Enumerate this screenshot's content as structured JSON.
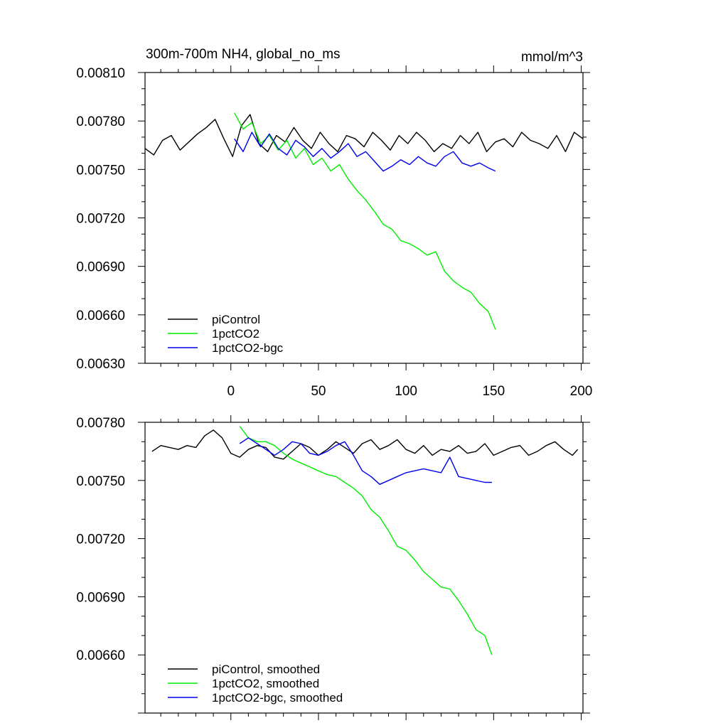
{
  "figure": {
    "title": "300m-700m NH4, global_no_ms",
    "units": "mmol/m^3"
  },
  "chart_data": [
    {
      "type": "line",
      "title": "300m-700m NH4, global_no_ms",
      "units": "mmol/m^3",
      "xlabel": "",
      "ylabel": "",
      "xlim": [
        -49,
        201
      ],
      "ylim": [
        0.0063,
        0.0081
      ],
      "xticks": [
        0,
        50,
        100,
        150,
        200
      ],
      "xtick_labels": [
        "0",
        "50",
        "100",
        "150",
        "200"
      ],
      "yticks": [
        0.0063,
        0.0066,
        0.0069,
        0.0072,
        0.0075,
        0.0078,
        0.0081
      ],
      "ytick_labels": [
        "0.00630",
        "0.00660",
        "0.00690",
        "0.00720",
        "0.00750",
        "0.00780",
        "0.00810"
      ],
      "legend_position": "bottom-left",
      "series": [
        {
          "name": "piControl",
          "color": "#000000",
          "x": [
            -49,
            -44,
            -39,
            -34,
            -29,
            -24,
            -19,
            -14,
            -9,
            -4,
            1,
            6,
            11,
            16,
            21,
            26,
            31,
            36,
            41,
            46,
            51,
            56,
            61,
            66,
            71,
            76,
            81,
            86,
            91,
            96,
            101,
            106,
            111,
            116,
            121,
            126,
            131,
            136,
            141,
            146,
            151,
            156,
            161,
            166,
            171,
            176,
            181,
            186,
            191,
            196,
            201
          ],
          "y": [
            0.00763,
            0.00759,
            0.00768,
            0.00771,
            0.00762,
            0.00767,
            0.00772,
            0.00776,
            0.00781,
            0.00769,
            0.00758,
            0.00777,
            0.00784,
            0.00766,
            0.00761,
            0.00771,
            0.00767,
            0.00776,
            0.00768,
            0.00763,
            0.00773,
            0.00766,
            0.00761,
            0.00771,
            0.00769,
            0.00764,
            0.00773,
            0.00768,
            0.00762,
            0.00771,
            0.00766,
            0.00773,
            0.00768,
            0.00761,
            0.00766,
            0.00763,
            0.00771,
            0.00766,
            0.00773,
            0.00761,
            0.00767,
            0.00769,
            0.00764,
            0.00773,
            0.00768,
            0.00766,
            0.00763,
            0.00771,
            0.00761,
            0.00773,
            0.00769
          ]
        },
        {
          "name": "1pctCO2",
          "color": "#00ee00",
          "x": [
            2,
            7,
            12,
            17,
            22,
            27,
            32,
            37,
            42,
            47,
            52,
            57,
            62,
            67,
            72,
            77,
            82,
            87,
            92,
            97,
            102,
            107,
            112,
            117,
            122,
            127,
            132,
            137,
            142,
            147,
            151
          ],
          "y": [
            0.00785,
            0.00775,
            0.00779,
            0.00766,
            0.00771,
            0.00762,
            0.00768,
            0.00757,
            0.00763,
            0.00753,
            0.00757,
            0.00749,
            0.00753,
            0.00744,
            0.00737,
            0.00731,
            0.00724,
            0.00716,
            0.00713,
            0.00706,
            0.00704,
            0.00701,
            0.00697,
            0.00699,
            0.00687,
            0.00681,
            0.00677,
            0.00674,
            0.00667,
            0.00662,
            0.00651
          ]
        },
        {
          "name": "1pctCO2-bgc",
          "color": "#0000ee",
          "x": [
            2,
            7,
            12,
            17,
            22,
            27,
            32,
            37,
            42,
            47,
            52,
            57,
            62,
            67,
            72,
            77,
            82,
            87,
            92,
            97,
            102,
            107,
            112,
            117,
            122,
            127,
            132,
            137,
            142,
            147,
            151
          ],
          "y": [
            0.00769,
            0.00761,
            0.00773,
            0.00764,
            0.00772,
            0.00763,
            0.00759,
            0.00768,
            0.00764,
            0.00758,
            0.00763,
            0.00757,
            0.00761,
            0.00766,
            0.00758,
            0.00761,
            0.00755,
            0.00749,
            0.00752,
            0.00756,
            0.00753,
            0.00758,
            0.00754,
            0.00752,
            0.00758,
            0.00761,
            0.00754,
            0.00752,
            0.00754,
            0.00751,
            0.00749
          ]
        }
      ]
    },
    {
      "type": "line",
      "title": "",
      "xlabel": "",
      "ylabel": "",
      "xlim": [
        -49,
        201
      ],
      "ylim": [
        0.0063,
        0.0078
      ],
      "xticks": [
        0,
        50,
        100,
        150,
        200
      ],
      "xtick_labels": [],
      "yticks": [
        0.0066,
        0.0069,
        0.0072,
        0.0075,
        0.0078
      ],
      "ytick_labels": [
        "0.00660",
        "0.00690",
        "0.00720",
        "0.00750",
        "0.00780"
      ],
      "legend_position": "bottom-left",
      "series": [
        {
          "name": "piControl, smoothed",
          "color": "#000000",
          "x": [
            -45,
            -40,
            -35,
            -30,
            -25,
            -20,
            -15,
            -10,
            -5,
            0,
            5,
            10,
            15,
            20,
            25,
            30,
            35,
            40,
            45,
            50,
            55,
            60,
            65,
            70,
            75,
            80,
            85,
            90,
            95,
            100,
            105,
            110,
            115,
            120,
            125,
            130,
            135,
            140,
            145,
            150,
            155,
            160,
            165,
            170,
            175,
            180,
            185,
            190,
            195,
            198
          ],
          "y": [
            0.00765,
            0.00768,
            0.00767,
            0.00766,
            0.00768,
            0.00767,
            0.00773,
            0.00776,
            0.00772,
            0.00764,
            0.00762,
            0.00766,
            0.00768,
            0.00767,
            0.00762,
            0.00761,
            0.00765,
            0.00769,
            0.00767,
            0.00763,
            0.00766,
            0.0077,
            0.00767,
            0.00764,
            0.00769,
            0.00771,
            0.00766,
            0.00768,
            0.00771,
            0.00766,
            0.00764,
            0.00768,
            0.00763,
            0.00766,
            0.00765,
            0.00768,
            0.00764,
            0.00765,
            0.00769,
            0.00763,
            0.00765,
            0.00767,
            0.00768,
            0.00763,
            0.00765,
            0.00768,
            0.0077,
            0.00766,
            0.00763,
            0.00766
          ]
        },
        {
          "name": "1pctCO2, smoothed",
          "color": "#00ee00",
          "x": [
            5,
            10,
            15,
            20,
            25,
            30,
            35,
            40,
            45,
            50,
            55,
            60,
            65,
            70,
            75,
            80,
            85,
            90,
            95,
            100,
            105,
            110,
            115,
            120,
            125,
            130,
            135,
            140,
            145,
            149
          ],
          "y": [
            0.00778,
            0.00772,
            0.0077,
            0.0077,
            0.00768,
            0.00764,
            0.00761,
            0.00759,
            0.00757,
            0.00755,
            0.00753,
            0.00752,
            0.00749,
            0.00746,
            0.00742,
            0.00735,
            0.00731,
            0.00724,
            0.00716,
            0.00714,
            0.00709,
            0.00703,
            0.00699,
            0.00695,
            0.00694,
            0.00688,
            0.00681,
            0.00673,
            0.0067,
            0.0066
          ]
        },
        {
          "name": "1pctCO2-bgc, smoothed",
          "color": "#0000ee",
          "x": [
            5,
            10,
            15,
            20,
            25,
            30,
            35,
            40,
            45,
            50,
            55,
            60,
            65,
            70,
            75,
            80,
            85,
            90,
            95,
            100,
            105,
            110,
            115,
            120,
            125,
            130,
            135,
            140,
            145,
            149
          ],
          "y": [
            0.00769,
            0.00772,
            0.00769,
            0.00766,
            0.00763,
            0.00766,
            0.0077,
            0.00769,
            0.00764,
            0.00763,
            0.00765,
            0.00768,
            0.0077,
            0.00763,
            0.00755,
            0.00752,
            0.00748,
            0.0075,
            0.00752,
            0.00754,
            0.00755,
            0.00756,
            0.00755,
            0.00754,
            0.00762,
            0.00752,
            0.00751,
            0.0075,
            0.00749,
            0.00749
          ]
        }
      ]
    }
  ]
}
